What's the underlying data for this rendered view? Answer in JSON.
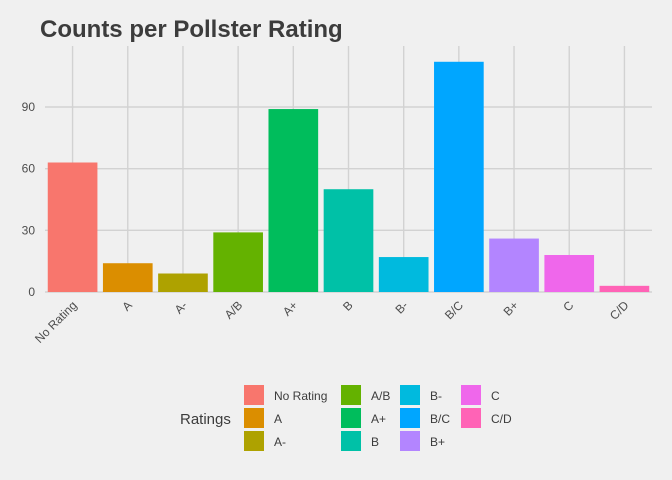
{
  "chart_data": {
    "type": "bar",
    "title": "Counts per Pollster Rating",
    "xlabel": "",
    "ylabel": "",
    "categories": [
      "No Rating",
      "A",
      "A-",
      "A/B",
      "A+",
      "B",
      "B-",
      "B/C",
      "B+",
      "C",
      "C/D"
    ],
    "values": [
      63,
      14,
      9,
      29,
      89,
      50,
      17,
      112,
      26,
      18,
      3
    ],
    "colors": [
      "#f8766d",
      "#db8e00",
      "#aea200",
      "#64b200",
      "#00bd5c",
      "#00c1a7",
      "#00bade",
      "#00a6ff",
      "#b385ff",
      "#ef67eb",
      "#ff63b6"
    ],
    "yticks": [
      0,
      30,
      60,
      90
    ],
    "ylim": [
      0,
      115
    ],
    "grid": true,
    "legend": {
      "title": "Ratings",
      "position": "bottom"
    }
  }
}
